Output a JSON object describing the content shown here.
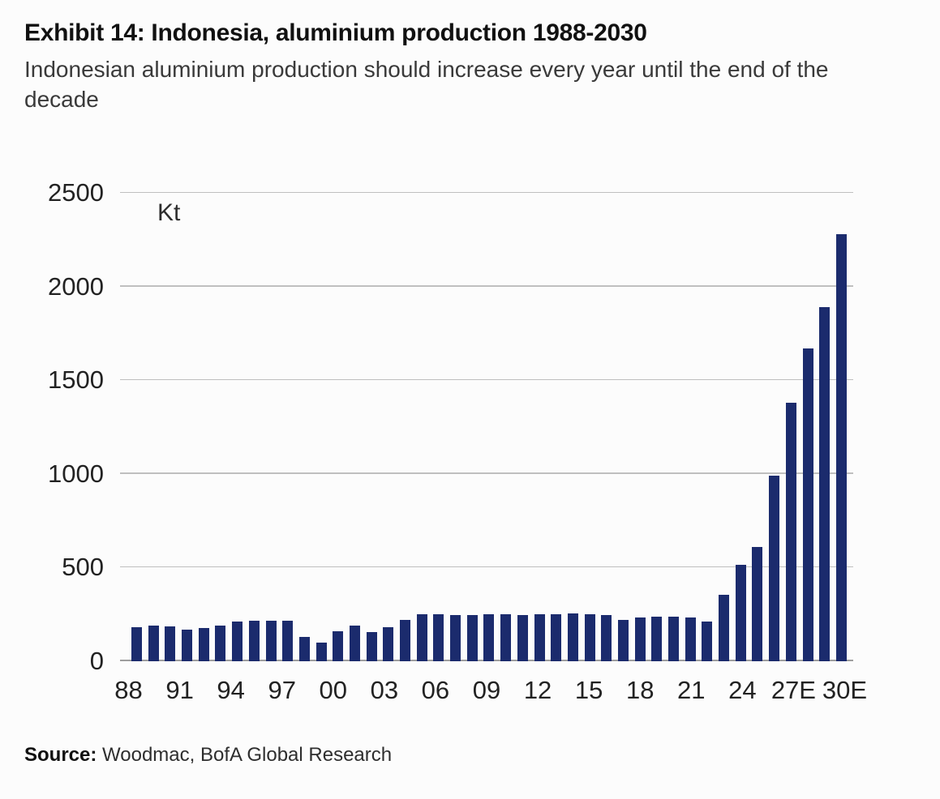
{
  "header": {
    "title": "Exhibit 14: Indonesia, aluminium production 1988-2030",
    "subtitle": "Indonesian aluminium production should increase every year until the end of the decade"
  },
  "source": {
    "label": "Source:",
    "text": " Woodmac, BofA Global Research"
  },
  "chart_data": {
    "type": "bar",
    "title": "Indonesia aluminium production",
    "unit_label": "Kt",
    "ylabel": "Kt",
    "xlabel": "",
    "ylim": [
      0,
      2500
    ],
    "yticks": [
      0,
      500,
      1000,
      1500,
      2000,
      2500
    ],
    "grid": true,
    "bar_color": "#1b2b6d",
    "x": [
      1988,
      1989,
      1990,
      1991,
      1992,
      1993,
      1994,
      1995,
      1996,
      1997,
      1998,
      1999,
      2000,
      2001,
      2002,
      2003,
      2004,
      2005,
      2006,
      2007,
      2008,
      2009,
      2010,
      2011,
      2012,
      2013,
      2014,
      2015,
      2016,
      2017,
      2018,
      2019,
      2020,
      2021,
      2022,
      2023,
      2024,
      2025,
      2026,
      2027,
      2028,
      2029,
      2030
    ],
    "values": [
      180,
      190,
      188,
      170,
      178,
      192,
      212,
      218,
      215,
      215,
      130,
      100,
      162,
      192,
      155,
      182,
      222,
      250,
      252,
      248,
      245,
      250,
      250,
      248,
      250,
      252,
      255,
      252,
      245,
      222,
      235,
      240,
      240,
      232,
      212,
      355,
      515,
      610,
      990,
      1380,
      1670,
      1890,
      2280
    ],
    "x_tick_labels": [
      "88",
      "91",
      "94",
      "97",
      "00",
      "03",
      "06",
      "09",
      "12",
      "15",
      "18",
      "21",
      "24",
      "27E",
      "30E"
    ],
    "x_tick_indices": [
      0,
      3,
      6,
      9,
      12,
      15,
      18,
      21,
      24,
      27,
      30,
      33,
      36,
      39,
      42
    ]
  }
}
